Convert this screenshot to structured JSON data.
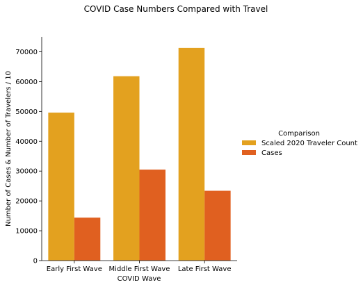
{
  "chart_data": {
    "type": "bar",
    "title": "COVID Case Numbers Compared with Travel",
    "xlabel": "COVID Wave",
    "ylabel": "Number of Cases & Number of Travelers / 10",
    "categories": [
      "Early First Wave",
      "Middle First Wave",
      "Late First Wave"
    ],
    "series": [
      {
        "name": "Scaled 2020 Traveler Count",
        "values": [
          49600,
          61800,
          71300
        ],
        "color": "#E3A11F"
      },
      {
        "name": "Cases",
        "values": [
          14400,
          30500,
          23400
        ],
        "color": "#E06020"
      }
    ],
    "ylim": [
      0,
      75000
    ],
    "yticks": [
      0,
      10000,
      20000,
      30000,
      40000,
      50000,
      60000,
      70000
    ],
    "grid": false,
    "legend": {
      "title": "Comparison",
      "placement": "right"
    }
  }
}
